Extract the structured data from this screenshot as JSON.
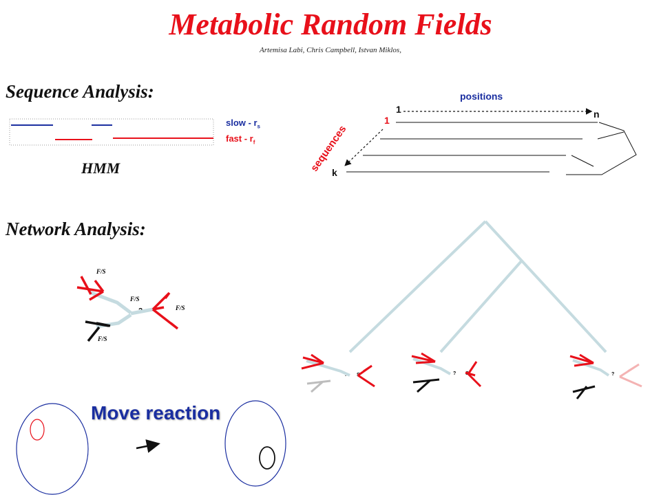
{
  "header": {
    "title": "Metabolic Random Fields",
    "authors": "Artemisa Labi, Chris Campbell, Istvan Miklos,"
  },
  "sequence_section": {
    "heading": "Sequence Analysis:",
    "hmm_label": "HMM",
    "slow_label": "slow  - r",
    "slow_sub": "s",
    "fast_label": "fast  - r",
    "fast_sub": "f",
    "positions_label": "positions",
    "sequences_label": "sequences",
    "pos_start": "1",
    "pos_end": "n",
    "seq_start": "1",
    "seq_end": "k"
  },
  "network_section": {
    "heading": "Network Analysis:",
    "fs_label": "F/S",
    "unknown_label": "?",
    "state_label": "S"
  },
  "move_section": {
    "label": "Move reaction",
    "arrow": "→"
  },
  "colors": {
    "title": "#e8101a",
    "fast": "#e8101a",
    "slow": "#1a2ea0",
    "tree": "#c5dbe0",
    "dark": "#111111"
  }
}
